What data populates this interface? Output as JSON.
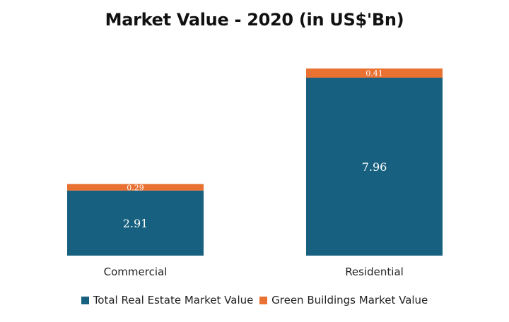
{
  "chart_data": {
    "type": "bar",
    "stacked": true,
    "title": "Market Value - 2020 (in US$'Bn)",
    "xlabel": "",
    "ylabel": "",
    "categories": [
      "Commercial",
      "Residential"
    ],
    "series": [
      {
        "name": "Total Real Estate Market Value",
        "color": "#17607f",
        "values": [
          2.91,
          7.96
        ],
        "labels": [
          "2.91",
          "7.96"
        ]
      },
      {
        "name": "Green Buildings Market Value",
        "color": "#e97132",
        "values": [
          0.29,
          0.41
        ],
        "labels": [
          "0.29",
          "0.41"
        ]
      }
    ],
    "ylim": [
      0,
      8.37
    ],
    "grid": false,
    "legend_position": "bottom"
  }
}
